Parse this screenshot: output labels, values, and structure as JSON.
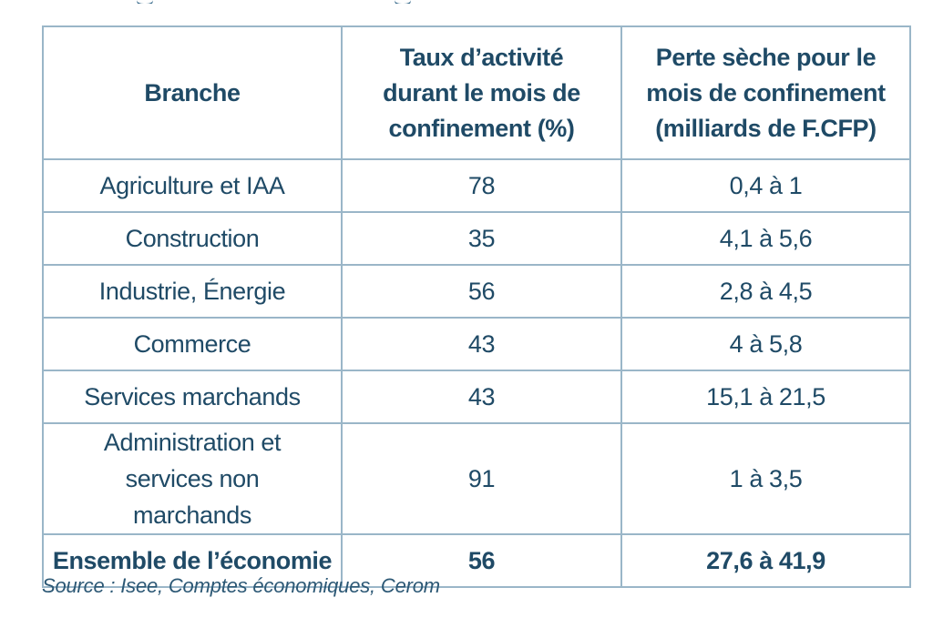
{
  "table": {
    "headers": {
      "branche": "Branche",
      "taux": "Taux d’activité durant le mois de confinement (%)",
      "perte": "Perte sèche pour le mois de confinement (milliards de F.CFP)"
    },
    "rows": [
      {
        "branche": "Agriculture et IAA",
        "taux": "78",
        "perte": "0,4 à 1"
      },
      {
        "branche": "Construction",
        "taux": "35",
        "perte": "4,1 à 5,6"
      },
      {
        "branche": "Industrie, Énergie",
        "taux": "56",
        "perte": "2,8 à 4,5"
      },
      {
        "branche": "Commerce",
        "taux": "43",
        "perte": "4 à 5,8"
      },
      {
        "branche": "Services marchands",
        "taux": "43",
        "perte": "15,1 à 21,5"
      },
      {
        "branche": "Administration et services non marchands",
        "taux": "91",
        "perte": "1 à 3,5"
      }
    ],
    "total": {
      "branche": "Ensemble de l’économie",
      "taux": "56",
      "perte": "27,6 à 41,9"
    }
  },
  "source": "Source : Isee, Comptes économiques, Cerom"
}
